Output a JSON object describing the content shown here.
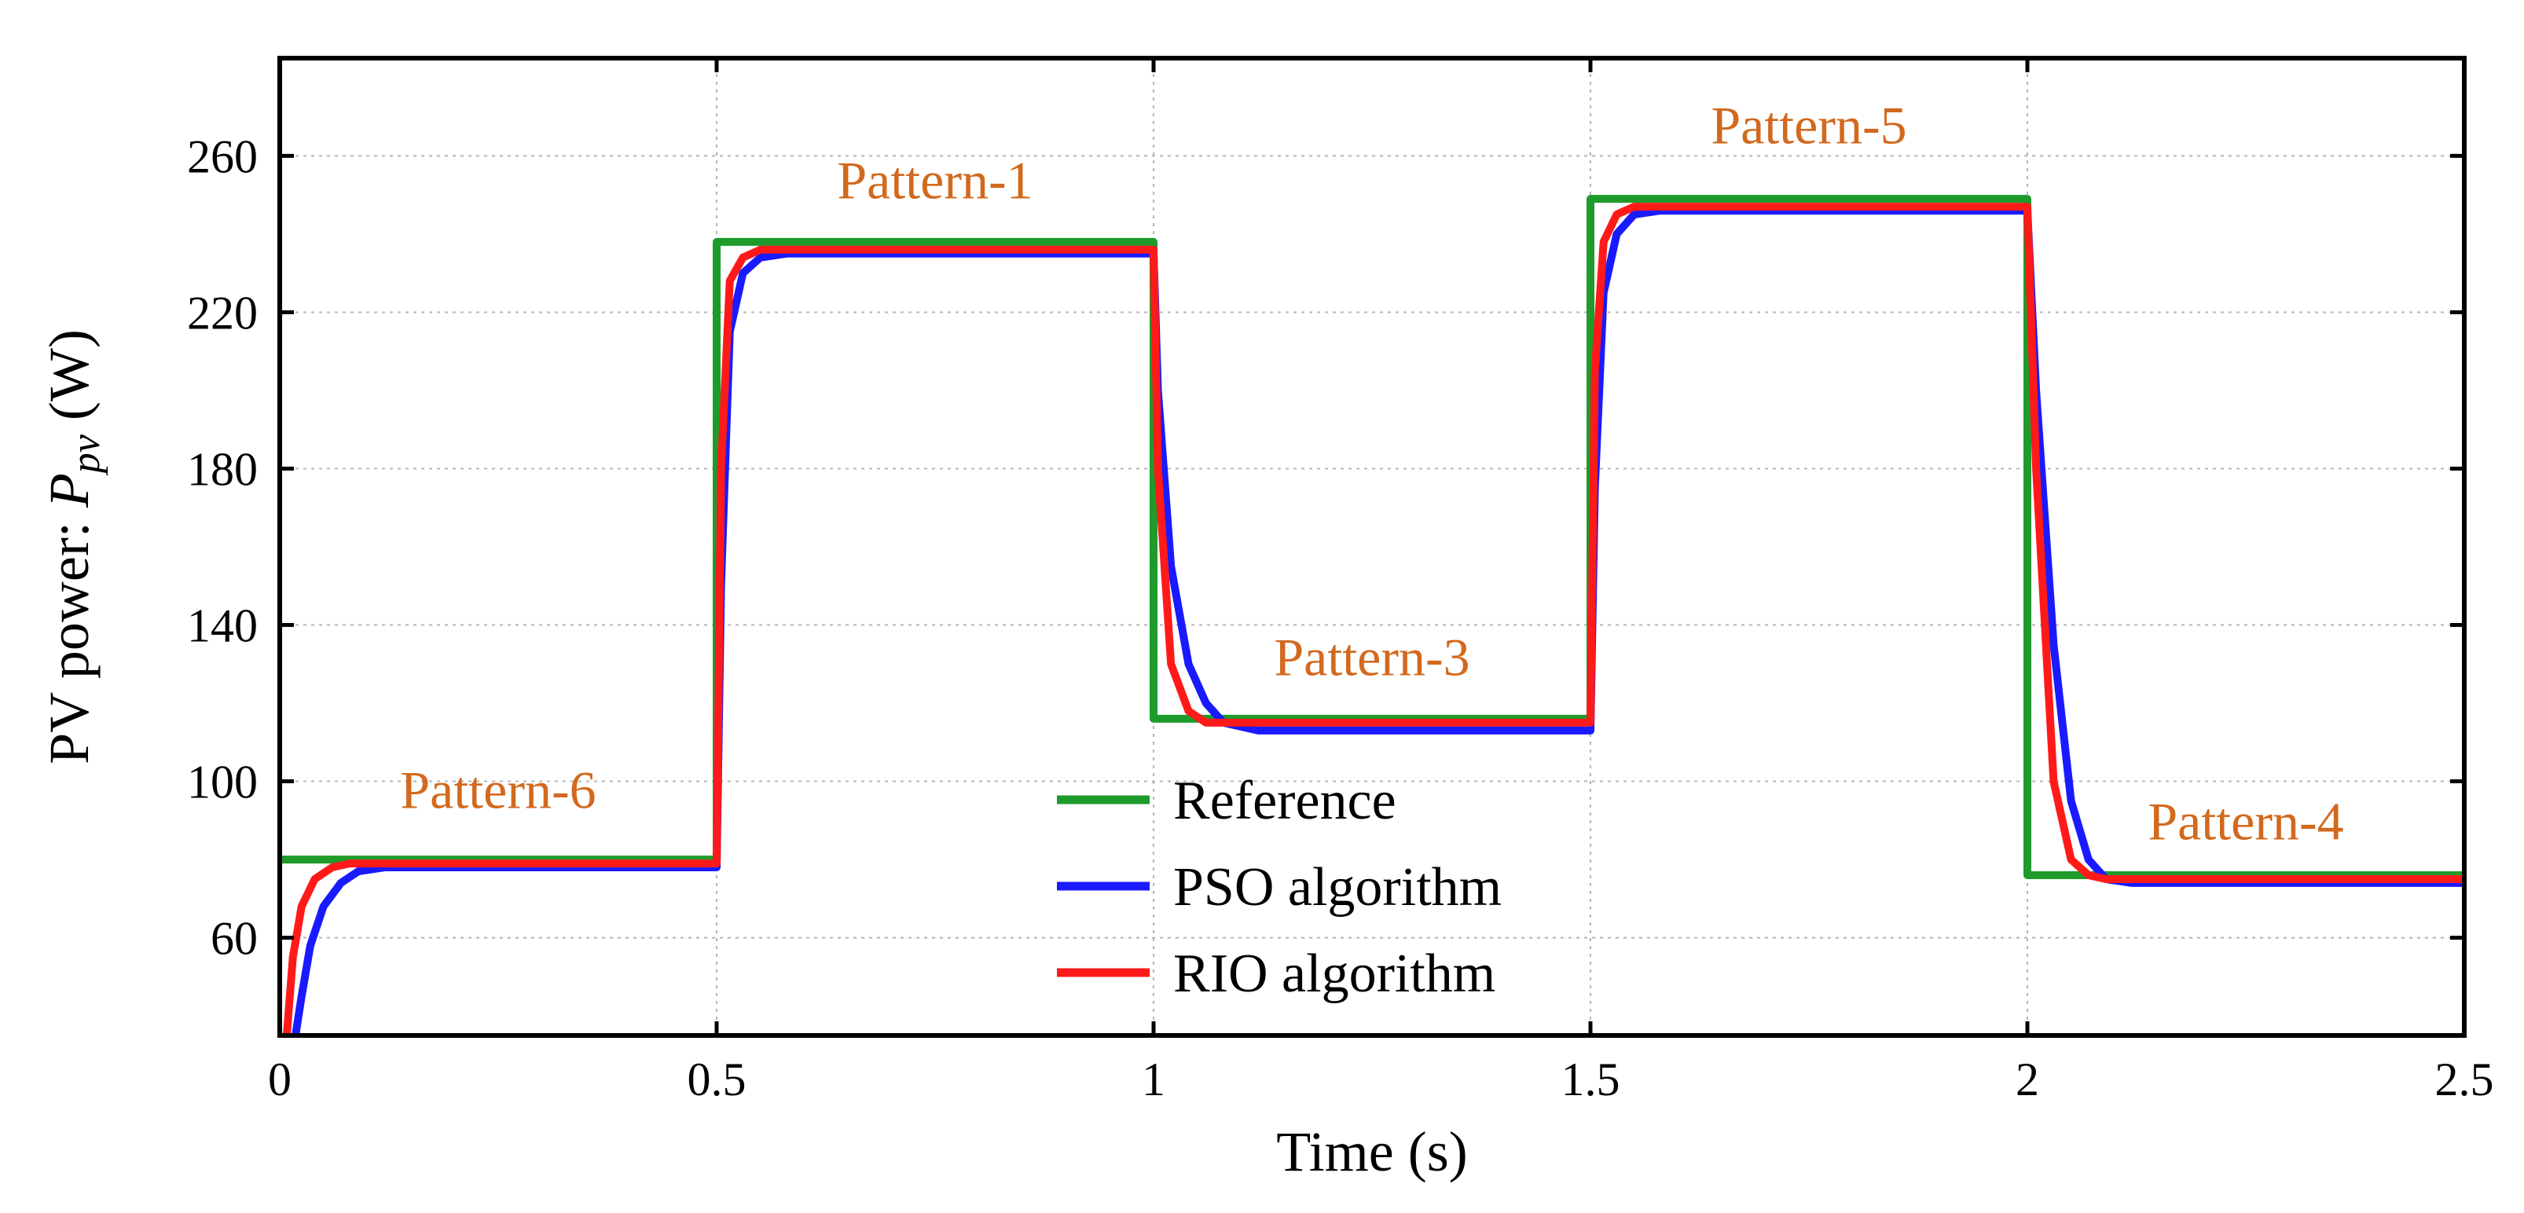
{
  "chart_data": {
    "type": "line",
    "title": "",
    "xlabel": "Time (s)",
    "ylabel": {
      "prefix": "PV power: ",
      "symbol": "P",
      "subscript": "pv",
      "unit": " (W)"
    },
    "xlim": [
      0,
      2.5
    ],
    "ylim": [
      35,
      285
    ],
    "x_ticks": [
      0,
      0.5,
      1,
      1.5,
      2,
      2.5
    ],
    "x_tick_labels": [
      "0",
      "0.5",
      "1",
      "1.5",
      "2",
      "2.5"
    ],
    "y_ticks": [
      60,
      100,
      140,
      180,
      220,
      260
    ],
    "y_tick_labels": [
      "60",
      "100",
      "140",
      "180",
      "220",
      "260"
    ],
    "grid": true,
    "legend_position": "bottom-center",
    "series": [
      {
        "name": "Reference",
        "color": "#1e9b2a",
        "x": [
          0,
          0.5,
          0.5,
          1.0,
          1.0,
          1.5,
          1.5,
          2.0,
          2.0,
          2.5
        ],
        "y": [
          80,
          80,
          238,
          238,
          116,
          116,
          249,
          249,
          76,
          76
        ]
      },
      {
        "name": "PSO algorithm",
        "color": "#1a1aff",
        "x": [
          0.018,
          0.025,
          0.035,
          0.05,
          0.07,
          0.09,
          0.12,
          0.5,
          0.505,
          0.515,
          0.53,
          0.55,
          0.58,
          1.0,
          1.005,
          1.02,
          1.04,
          1.06,
          1.08,
          1.1,
          1.12,
          1.5,
          1.505,
          1.515,
          1.53,
          1.55,
          1.58,
          2.0,
          2.01,
          2.03,
          2.05,
          2.07,
          2.09,
          2.12,
          2.5
        ],
        "y": [
          35,
          45,
          58,
          68,
          74,
          77,
          78,
          78,
          150,
          215,
          230,
          234,
          235,
          235,
          200,
          155,
          130,
          120,
          115,
          114,
          113,
          113,
          175,
          225,
          240,
          245,
          246,
          246,
          200,
          135,
          95,
          80,
          75,
          74,
          74
        ]
      },
      {
        "name": "RIO algorithm",
        "color": "#ff1a1a",
        "x": [
          0.008,
          0.015,
          0.025,
          0.04,
          0.06,
          0.08,
          0.5,
          0.505,
          0.515,
          0.53,
          0.55,
          1.0,
          1.005,
          1.02,
          1.04,
          1.06,
          1.08,
          1.5,
          1.505,
          1.515,
          1.53,
          1.55,
          2.0,
          2.01,
          2.03,
          2.05,
          2.07,
          2.09,
          2.5
        ],
        "y": [
          35,
          55,
          68,
          75,
          78,
          79,
          79,
          180,
          228,
          234,
          236,
          236,
          180,
          130,
          118,
          115,
          115,
          115,
          205,
          238,
          245,
          247,
          247,
          180,
          100,
          80,
          76,
          75,
          75
        ]
      }
    ],
    "annotations": [
      {
        "text": "Pattern-6",
        "x": 0.25,
        "y": 98
      },
      {
        "text": "Pattern-1",
        "x": 0.75,
        "y": 254
      },
      {
        "text": "Pattern-3",
        "x": 1.25,
        "y": 132
      },
      {
        "text": "Pattern-5",
        "x": 1.75,
        "y": 268
      },
      {
        "text": "Pattern-4",
        "x": 2.25,
        "y": 90
      }
    ]
  }
}
